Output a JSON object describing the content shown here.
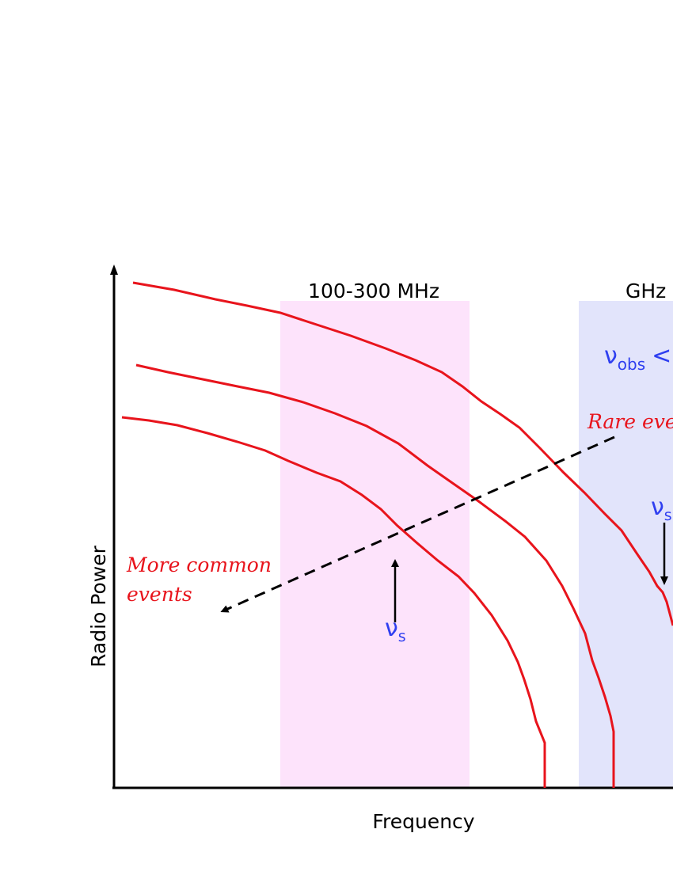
{
  "colors": {
    "curve": "#e8141c",
    "low_band": "#fde3fb",
    "high_band": "#e2e4fb",
    "annotation_blue": "#2f3ff0",
    "axis": "#000000"
  },
  "bands": {
    "low": "100-300 MHz",
    "high": "GHz"
  },
  "axes": {
    "x_label": "Frequency",
    "y_label": "Radio Power"
  },
  "annotations": {
    "nu_symbol": "ν",
    "nu_obs_sub": "obs",
    "nu_obs_rel": "<",
    "nu_s_sub": "s",
    "rare_events": "Rare even",
    "more_common_line1": "More common",
    "more_common_line2": "events"
  },
  "curves": {
    "count": 3,
    "names": [
      "upper-curve",
      "middle-curve",
      "lower-curve"
    ]
  }
}
